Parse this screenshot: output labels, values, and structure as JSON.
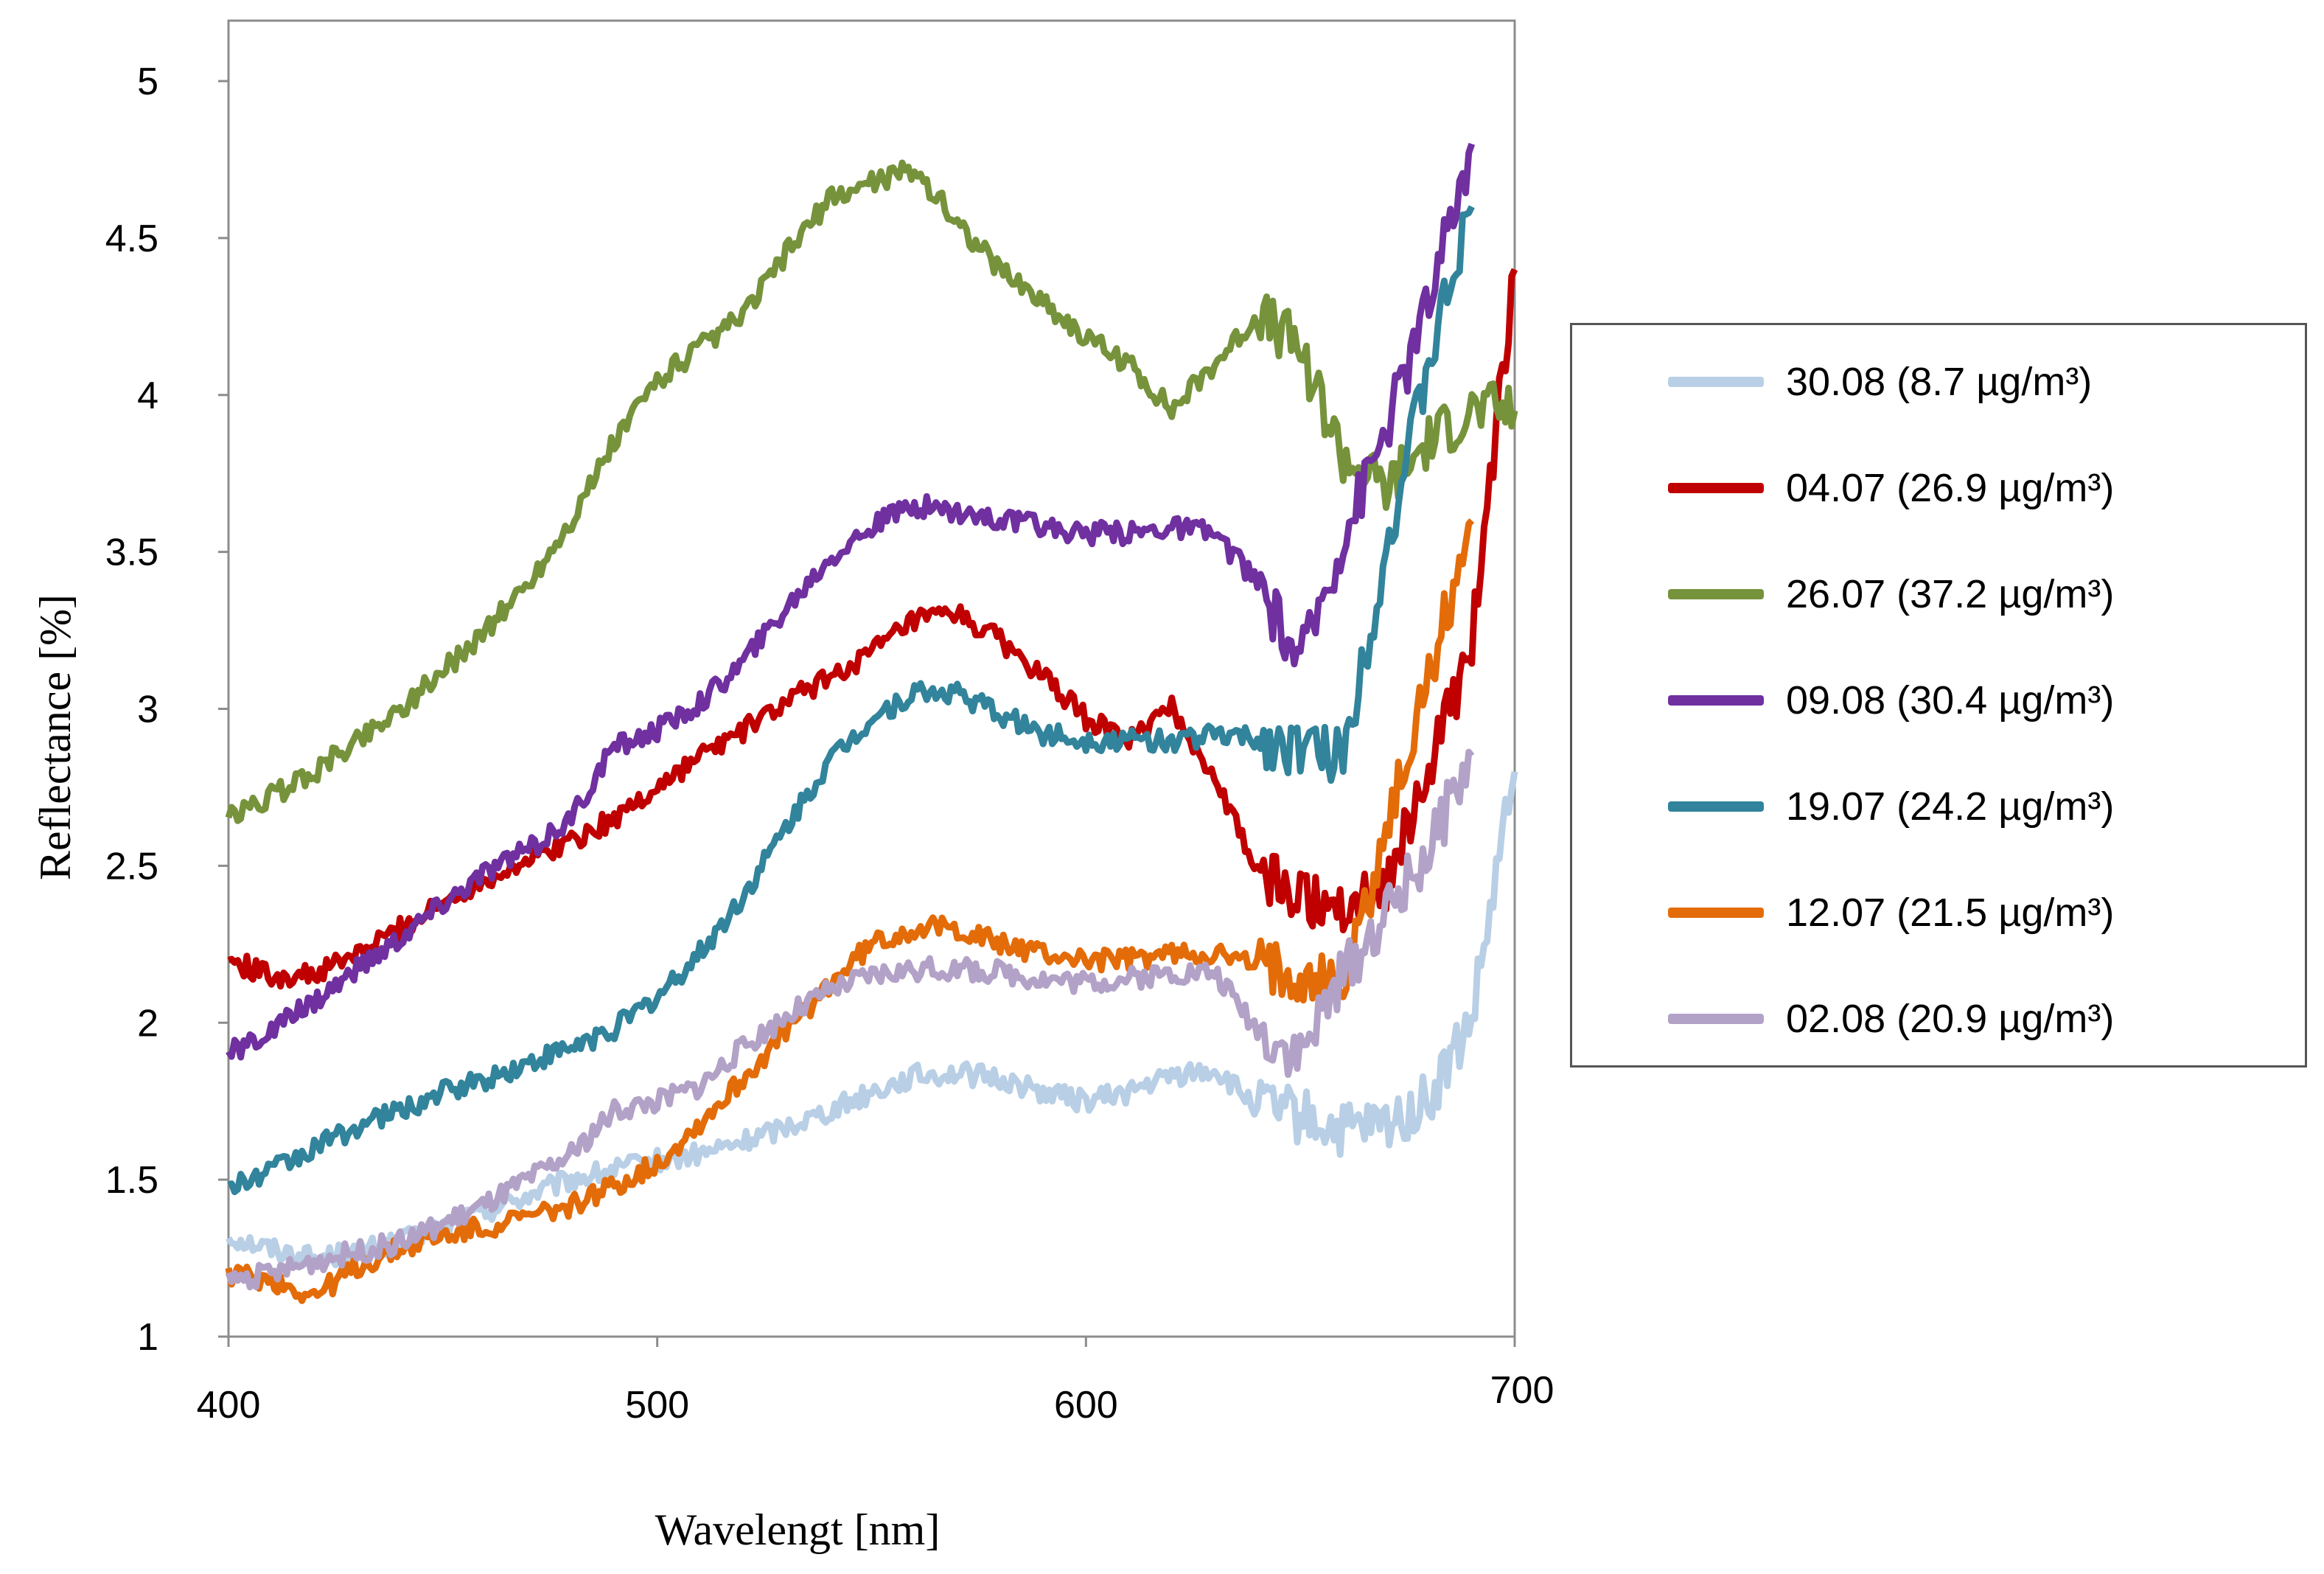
{
  "chart_data": {
    "type": "line",
    "title": "",
    "xlabel": "Wavelengt [nm]",
    "ylabel": "Reflectance [%]",
    "xlim": [
      400,
      700
    ],
    "ylim": [
      1,
      5.2
    ],
    "x_ticks": [
      "400",
      "500",
      "600",
      "700"
    ],
    "y_ticks": [
      "1",
      "1.5",
      "2",
      "2.5",
      "3",
      "3.5",
      "4",
      "4.5",
      "5"
    ],
    "grid": false,
    "legend_position": "right",
    "x": [
      400,
      410,
      420,
      430,
      440,
      450,
      460,
      470,
      480,
      490,
      500,
      510,
      520,
      530,
      540,
      550,
      560,
      570,
      580,
      590,
      600,
      610,
      620,
      630,
      640,
      650,
      660,
      670,
      680,
      690,
      700
    ],
    "series": [
      {
        "name": "30.08 (8.7 µg/m³)",
        "color": "#b8cfe6",
        "values": [
          1.32,
          1.28,
          1.25,
          1.27,
          1.3,
          1.35,
          1.4,
          1.45,
          1.5,
          1.53,
          1.56,
          1.58,
          1.62,
          1.67,
          1.72,
          1.78,
          1.83,
          1.84,
          1.82,
          1.78,
          1.75,
          1.78,
          1.83,
          1.85,
          1.73,
          1.7,
          1.65,
          1.67,
          1.75,
          2.0,
          2.8
        ]
      },
      {
        "name": "04.07 (26.9 µg/m³)",
        "color": "#c00000",
        "values": [
          2.2,
          2.15,
          2.15,
          2.22,
          2.3,
          2.38,
          2.46,
          2.52,
          2.58,
          2.65,
          2.75,
          2.85,
          2.93,
          3.02,
          3.1,
          3.18,
          3.28,
          3.3,
          3.22,
          3.1,
          2.97,
          2.9,
          3.0,
          2.78,
          2.48,
          2.4,
          2.38,
          2.45,
          2.8,
          3.2,
          4.4
        ]
      },
      {
        "name": "26.07 (37.2 µg/m³)",
        "color": "#76933c",
        "values": [
          2.65,
          2.72,
          2.8,
          2.9,
          3.0,
          3.12,
          3.25,
          3.4,
          3.6,
          3.85,
          4.05,
          4.15,
          4.25,
          4.45,
          4.62,
          4.68,
          4.72,
          4.55,
          4.4,
          4.3,
          4.18,
          4.1,
          3.95,
          4.1,
          4.25,
          4.15,
          3.8,
          3.7,
          3.85,
          3.95,
          3.95
        ]
      },
      {
        "name": "09.08 (30.4 µg/m³)",
        "color": "#7030a0",
        "values": [
          1.9,
          1.97,
          2.07,
          2.17,
          2.27,
          2.38,
          2.48,
          2.55,
          2.65,
          2.88,
          2.93,
          3.02,
          3.15,
          3.32,
          3.48,
          3.58,
          3.65,
          3.63,
          3.6,
          3.58,
          3.56,
          3.56,
          3.58,
          3.56,
          3.4,
          3.15,
          3.55,
          3.9,
          4.3,
          4.8,
          null
        ]
      },
      {
        "name": "19.07 (24.2 µg/m³)",
        "color": "#31849b",
        "values": [
          1.47,
          1.53,
          1.6,
          1.67,
          1.72,
          1.78,
          1.82,
          1.87,
          1.92,
          1.98,
          2.08,
          2.22,
          2.4,
          2.62,
          2.83,
          2.97,
          3.05,
          3.05,
          2.98,
          2.92,
          2.9,
          2.9,
          2.9,
          2.92,
          2.9,
          2.88,
          2.85,
          3.5,
          4.1,
          4.6,
          null
        ]
      },
      {
        "name": "12.07 (21.5 µg/m³)",
        "color": "#e36c09",
        "values": [
          1.2,
          1.18,
          1.13,
          1.22,
          1.28,
          1.32,
          1.35,
          1.38,
          1.42,
          1.48,
          1.55,
          1.68,
          1.82,
          1.97,
          2.12,
          2.25,
          2.3,
          2.3,
          2.25,
          2.22,
          2.2,
          2.2,
          2.22,
          2.22,
          2.18,
          2.16,
          2.12,
          2.6,
          3.1,
          3.6,
          null
        ]
      },
      {
        "name": "02.08 (20.9 µg/m³)",
        "color": "#b3a2c7",
        "values": [
          1.18,
          1.2,
          1.24,
          1.27,
          1.3,
          1.36,
          1.42,
          1.5,
          1.58,
          1.72,
          1.75,
          1.8,
          1.92,
          2.02,
          2.1,
          2.15,
          2.17,
          2.17,
          2.16,
          2.14,
          2.13,
          2.14,
          2.16,
          2.16,
          1.98,
          1.9,
          2.15,
          2.35,
          2.55,
          2.85,
          null
        ]
      }
    ]
  }
}
